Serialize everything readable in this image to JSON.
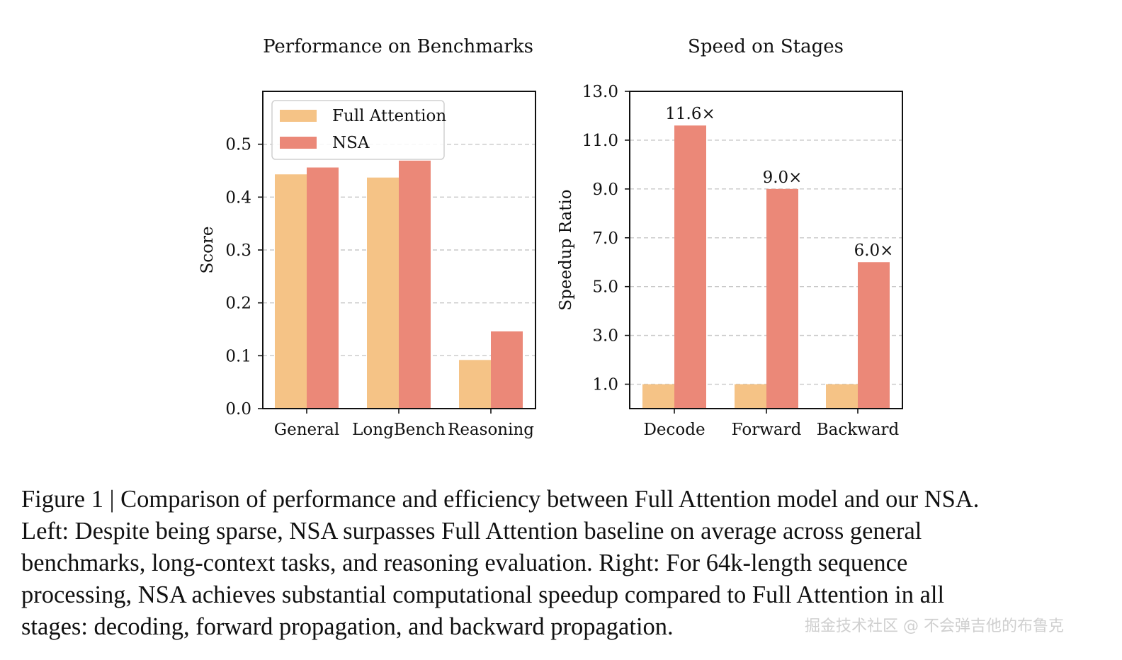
{
  "chart_data": [
    {
      "type": "bar",
      "title": "Performance on Benchmarks",
      "xlabel": "",
      "ylabel": "Score",
      "categories": [
        "General",
        "LongBench",
        "Reasoning"
      ],
      "series": [
        {
          "name": "Full Attention",
          "values": [
            0.443,
            0.437,
            0.092
          ],
          "color": "#F5C386"
        },
        {
          "name": "NSA",
          "values": [
            0.456,
            0.469,
            0.146
          ],
          "color": "#EB8878"
        }
      ],
      "ylim": [
        0,
        0.6
      ],
      "yticks": [
        "0.0",
        "0.1",
        "0.2",
        "0.3",
        "0.4",
        "0.5"
      ],
      "grid": true,
      "legend": "top-left"
    },
    {
      "type": "bar",
      "title": "Speed on Stages",
      "xlabel": "",
      "ylabel": "Speedup Ratio",
      "categories": [
        "Decode",
        "Forward",
        "Backward"
      ],
      "series": [
        {
          "name": "Full Attention",
          "values": [
            1.0,
            1.0,
            1.0
          ],
          "color": "#F5C386"
        },
        {
          "name": "NSA",
          "values": [
            11.6,
            9.0,
            6.0
          ],
          "color": "#EB8878",
          "labels": [
            "11.6×",
            "9.0×",
            "6.0×"
          ]
        }
      ],
      "ylim": [
        0,
        13
      ],
      "yticks": [
        "1.0",
        "3.0",
        "5.0",
        "7.0",
        "9.0",
        "11.0",
        "13.0"
      ],
      "grid": true
    }
  ],
  "caption": {
    "lines": [
      "Figure 1 | Comparison of performance and efficiency between Full Attention model and our NSA.",
      "Left: Despite being sparse, NSA surpasses Full Attention baseline on average across general",
      "benchmarks, long-context tasks, and reasoning evaluation. Right: For 64k-length sequence",
      "processing, NSA achieves substantial computational speedup compared to Full Attention in all",
      "stages: decoding, forward propagation, and backward propagation."
    ]
  },
  "watermark": "掘金技术社区 @ 不会弹吉他的布鲁克"
}
